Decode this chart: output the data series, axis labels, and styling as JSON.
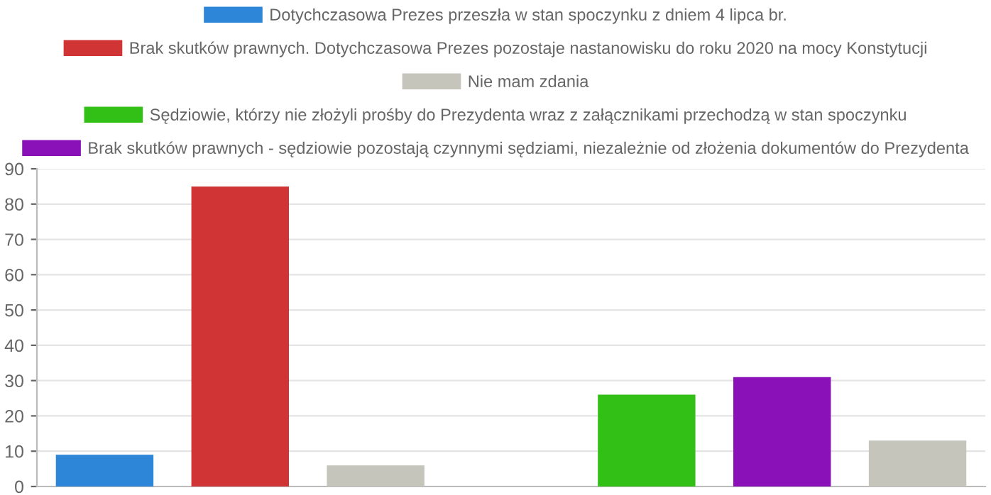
{
  "chart_data": {
    "type": "bar",
    "categories": [
      null,
      null,
      null,
      null,
      null,
      null,
      null
    ],
    "series": [
      {
        "name": "Dotychczasowa Prezes przeszła w stan spoczynku z dniem 4 lipca br.",
        "color": "#2e86d8",
        "values": [
          9,
          null,
          null,
          null,
          null,
          null,
          null
        ]
      },
      {
        "name": "Brak skutków prawnych. Dotychczasowa Prezes pozostaje nastanowisku do roku 2020 na mocy Konstytucji",
        "color": "#d03434",
        "values": [
          null,
          85,
          null,
          null,
          null,
          null,
          null
        ]
      },
      {
        "name": "Nie mam zdania",
        "color": "#c5c5bc",
        "values": [
          null,
          null,
          6,
          null,
          null,
          null,
          13
        ]
      },
      {
        "name": "Sędziowie, którzy nie złożyli prośby do Prezydenta wraz z załącznikami przechodzą w stan spoczynku",
        "color": "#33c016",
        "values": [
          null,
          null,
          null,
          null,
          26,
          null,
          null
        ]
      },
      {
        "name": "Brak skutków prawnych - sędziowie pozostają czynnymi sędziami, niezależnie od złożenia dokumentów do Prezydenta",
        "color": "#8a10b8",
        "values": [
          null,
          null,
          null,
          null,
          null,
          31,
          null
        ]
      }
    ],
    "ylim": [
      0,
      90
    ],
    "yticks": [
      0,
      10,
      20,
      30,
      40,
      50,
      60,
      70,
      80,
      90
    ],
    "grid": "y",
    "legend": "top"
  }
}
